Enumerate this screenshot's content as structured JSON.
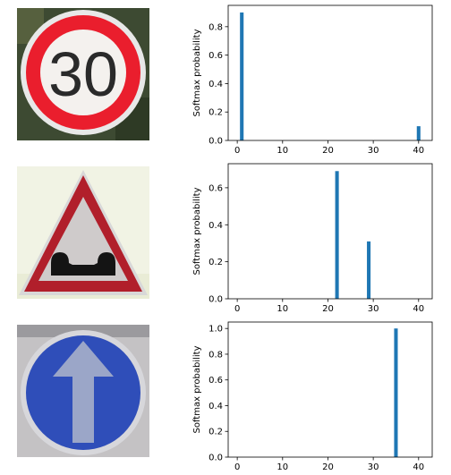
{
  "colors": {
    "bar": "#1f77b4",
    "axis": "#000000"
  },
  "images": [
    {
      "icon": "speed-limit-30-sign",
      "text": "30"
    },
    {
      "icon": "bumpy-road-warning-sign"
    },
    {
      "icon": "ahead-only-sign"
    }
  ],
  "chart_data": [
    {
      "type": "bar",
      "ylabel": "Softmax probability",
      "xlim": [
        -2,
        43
      ],
      "ylim": [
        0,
        0.95
      ],
      "xticks": [
        0,
        10,
        20,
        30,
        40
      ],
      "yticks": [
        0.0,
        0.2,
        0.4,
        0.6,
        0.8
      ],
      "ytick_labels": [
        "0.0",
        "0.2",
        "0.4",
        "0.6",
        "0.8"
      ],
      "x": [
        1,
        40
      ],
      "values": [
        0.9,
        0.1
      ]
    },
    {
      "type": "bar",
      "ylabel": "Softmax probability",
      "xlim": [
        -2,
        43
      ],
      "ylim": [
        0,
        0.73
      ],
      "xticks": [
        0,
        10,
        20,
        30,
        40
      ],
      "yticks": [
        0.0,
        0.2,
        0.4,
        0.6
      ],
      "ytick_labels": [
        "0.0",
        "0.2",
        "0.4",
        "0.6"
      ],
      "x": [
        22,
        29
      ],
      "values": [
        0.69,
        0.31
      ]
    },
    {
      "type": "bar",
      "ylabel": "Softmax probability",
      "xlim": [
        -2,
        43
      ],
      "ylim": [
        0,
        1.05
      ],
      "xticks": [
        0,
        10,
        20,
        30,
        40
      ],
      "yticks": [
        0.0,
        0.2,
        0.4,
        0.6,
        0.8,
        1.0
      ],
      "ytick_labels": [
        "0.0",
        "0.2",
        "0.4",
        "0.6",
        "0.8",
        "1.0"
      ],
      "x": [
        35
      ],
      "values": [
        1.0
      ]
    }
  ]
}
